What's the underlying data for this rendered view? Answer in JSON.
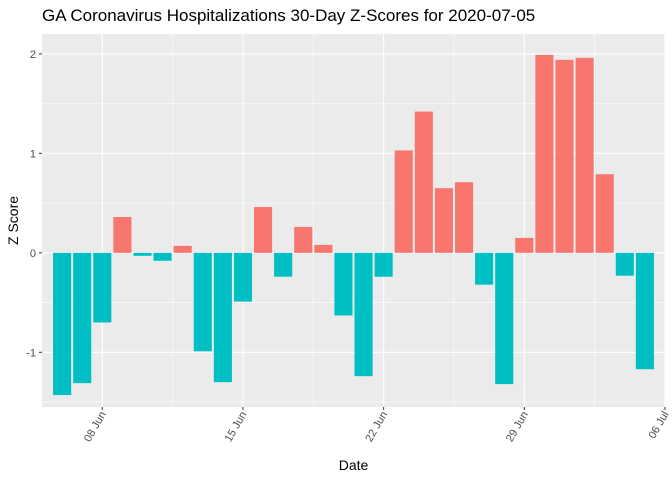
{
  "chart_data": {
    "type": "bar",
    "title": "GA Coronavirus Hospitalizations 30-Day Z-Scores for 2020-07-05",
    "xlabel": "Date",
    "ylabel": "Z Score",
    "x_tick_labels": [
      "08 Jun",
      "15 Jun",
      "22 Jun",
      "29 Jun",
      "06 Jul"
    ],
    "x_tick_dates": [
      "2020-06-08",
      "2020-06-15",
      "2020-06-22",
      "2020-06-29",
      "2020-07-06"
    ],
    "y_tick_labels": [
      "-1",
      "0",
      "1",
      "2"
    ],
    "y_ticks": [
      -1,
      0,
      1,
      2
    ],
    "ylim": [
      -1.55,
      2.2
    ],
    "xlim": [
      "2020-06-05",
      "2020-07-06"
    ],
    "grid": true,
    "legend": "none",
    "colors": {
      "positive": "#F8766D",
      "negative": "#00BFC4",
      "panel": "#EBEBEB",
      "grid": "#FFFFFF"
    },
    "categories": [
      "2020-06-06",
      "2020-06-07",
      "2020-06-08",
      "2020-06-09",
      "2020-06-10",
      "2020-06-11",
      "2020-06-12",
      "2020-06-13",
      "2020-06-14",
      "2020-06-15",
      "2020-06-16",
      "2020-06-17",
      "2020-06-18",
      "2020-06-19",
      "2020-06-20",
      "2020-06-21",
      "2020-06-22",
      "2020-06-23",
      "2020-06-24",
      "2020-06-25",
      "2020-06-26",
      "2020-06-27",
      "2020-06-28",
      "2020-06-29",
      "2020-06-30",
      "2020-07-01",
      "2020-07-02",
      "2020-07-03",
      "2020-07-04",
      "2020-07-05"
    ],
    "values": [
      -1.43,
      -1.31,
      -0.7,
      0.36,
      -0.03,
      -0.08,
      0.07,
      -0.99,
      -1.3,
      -0.49,
      0.46,
      -0.24,
      0.26,
      0.08,
      -0.63,
      -1.24,
      -0.24,
      1.03,
      1.42,
      0.65,
      0.71,
      -0.32,
      -1.32,
      0.15,
      1.99,
      1.94,
      1.96,
      0.79,
      -0.23,
      -1.17
    ]
  }
}
